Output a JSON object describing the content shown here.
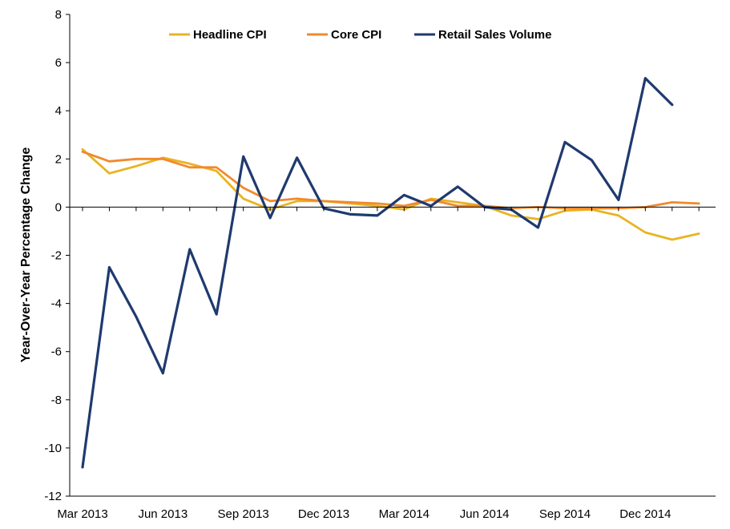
{
  "chart_data": {
    "type": "line",
    "title": "",
    "xlabel": "",
    "ylabel": "Year-Over-Year Percentage Change",
    "ylim": [
      -12,
      8
    ],
    "yticks": [
      8,
      6,
      4,
      2,
      0,
      -2,
      -4,
      -6,
      -8,
      -10,
      -12
    ],
    "ytick_labels": [
      "8",
      "6",
      "4",
      "2",
      "0",
      "-2",
      "-4",
      "-6",
      "-8",
      "-10",
      "-12"
    ],
    "x": [
      "Mar 2013",
      "Apr 2013",
      "May 2013",
      "Jun 2013",
      "Jul 2013",
      "Aug 2013",
      "Sep 2013",
      "Oct 2013",
      "Nov 2013",
      "Dec 2013",
      "Jan 2014",
      "Feb 2014",
      "Mar 2014",
      "Apr 2014",
      "May 2014",
      "Jun 2014",
      "Jul 2014",
      "Aug 2014",
      "Sep 2014",
      "Oct 2014",
      "Nov 2014",
      "Dec 2014",
      "Jan 2015",
      "Feb 2015"
    ],
    "xtick_labels": [
      "Mar 2013",
      "Jun 2013",
      "Sep 2013",
      "Dec 2013",
      "Mar 2014",
      "Jun 2014",
      "Sep 2014",
      "Dec 2014"
    ],
    "grid": false,
    "legend_position": "top",
    "series": [
      {
        "name": "Headline CPI",
        "color": "#E8B423",
        "values": [
          2.4,
          1.4,
          1.7,
          2.05,
          1.8,
          1.5,
          0.35,
          -0.1,
          0.25,
          0.25,
          0.15,
          0.05,
          -0.1,
          0.35,
          0.2,
          0.05,
          -0.35,
          -0.5,
          -0.15,
          -0.1,
          -0.35,
          -1.05,
          -1.35,
          -1.1
        ]
      },
      {
        "name": "Core CPI",
        "color": "#F08A2C",
        "values": [
          2.3,
          1.9,
          2.0,
          2.0,
          1.65,
          1.65,
          0.8,
          0.25,
          0.35,
          0.25,
          0.2,
          0.15,
          0.05,
          0.3,
          0.05,
          0.05,
          -0.05,
          0.0,
          -0.05,
          -0.05,
          -0.05,
          0.0,
          0.2,
          0.15
        ]
      },
      {
        "name": "Retail Sales Volume",
        "color": "#1F3A6E",
        "values": [
          -10.8,
          -2.5,
          -4.55,
          -6.9,
          -1.75,
          -4.45,
          2.1,
          -0.45,
          2.05,
          -0.05,
          -0.3,
          -0.35,
          0.5,
          0.05,
          0.85,
          0.0,
          -0.1,
          -0.85,
          2.7,
          1.95,
          0.3,
          5.35,
          4.25,
          null
        ]
      }
    ]
  }
}
